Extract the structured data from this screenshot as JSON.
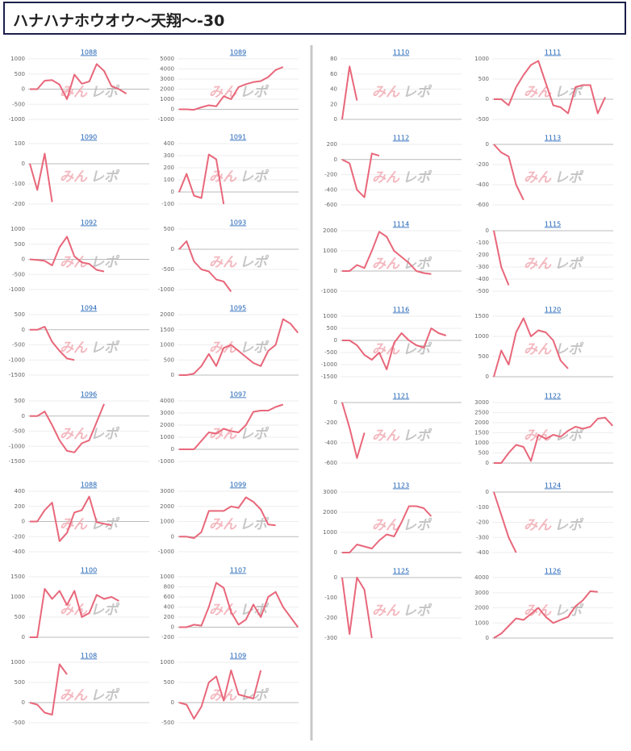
{
  "header": {
    "title": "ハナハナホウオウ～天翔～-30"
  },
  "watermark": [
    "みん",
    "レポ"
  ],
  "chart_data": [
    {
      "type": "line",
      "title": "1088",
      "color": "#e8677a",
      "ylim": [
        -1000,
        1000
      ],
      "yticks": [
        1000,
        500,
        0,
        -500,
        -1000
      ],
      "values": [
        0,
        0,
        280,
        300,
        150,
        -330,
        480,
        180,
        250,
        830,
        600,
        100,
        0,
        -150
      ]
    },
    {
      "type": "line",
      "title": "1089",
      "color": "#e8677a",
      "ylim": [
        -1000,
        5000
      ],
      "yticks": [
        5000,
        4000,
        3000,
        2000,
        1000,
        0,
        -1000
      ],
      "values": [
        0,
        0,
        -50,
        200,
        400,
        300,
        1300,
        1000,
        2200,
        2500,
        2700,
        2800,
        3200,
        3900,
        4200
      ]
    },
    {
      "type": "line",
      "title": "1090",
      "color": "#e8677a",
      "ylim": [
        -200,
        100
      ],
      "yticks": [
        100,
        0,
        -100,
        -200
      ],
      "values": [
        0,
        -130,
        50,
        -190
      ]
    },
    {
      "type": "line",
      "title": "1091",
      "color": "#e8677a",
      "ylim": [
        -100,
        400
      ],
      "yticks": [
        400,
        300,
        200,
        100,
        0,
        -100
      ],
      "values": [
        0,
        150,
        -30,
        -50,
        310,
        270,
        -100
      ]
    },
    {
      "type": "line",
      "title": "1092",
      "color": "#e8677a",
      "ylim": [
        -1000,
        1000
      ],
      "yticks": [
        1000,
        500,
        0,
        -500,
        -1000
      ],
      "values": [
        0,
        -20,
        -50,
        -200,
        400,
        750,
        100,
        -100,
        -150,
        -350,
        -400
      ]
    },
    {
      "type": "line",
      "title": "1093",
      "color": "#e8677a",
      "ylim": [
        -1000,
        500
      ],
      "yticks": [
        500,
        0,
        -500,
        -1000
      ],
      "values": [
        0,
        200,
        -300,
        -500,
        -550,
        -750,
        -800,
        -1050
      ]
    },
    {
      "type": "line",
      "title": "1094",
      "color": "#e8677a",
      "ylim": [
        -1500,
        500
      ],
      "yticks": [
        500,
        0,
        -500,
        -1000,
        -1500
      ],
      "values": [
        0,
        0,
        100,
        -400,
        -700,
        -950,
        -1000
      ]
    },
    {
      "type": "line",
      "title": "1095",
      "color": "#e8677a",
      "ylim": [
        0,
        2000
      ],
      "yticks": [
        2000,
        1500,
        1000,
        500,
        0
      ],
      "values": [
        0,
        0,
        50,
        300,
        700,
        300,
        900,
        1000,
        800,
        600,
        400,
        300,
        800,
        1000,
        1850,
        1700,
        1400
      ]
    },
    {
      "type": "line",
      "title": "1096",
      "color": "#e8677a",
      "ylim": [
        -1500,
        500
      ],
      "yticks": [
        500,
        0,
        -500,
        -1000,
        -1500
      ],
      "values": [
        0,
        0,
        150,
        -300,
        -800,
        -1150,
        -1200,
        -900,
        -800,
        -200,
        400
      ]
    },
    {
      "type": "line",
      "title": "1097",
      "color": "#e8677a",
      "ylim": [
        -1000,
        4000
      ],
      "yticks": [
        4000,
        3000,
        2000,
        1000,
        0,
        -1000
      ],
      "values": [
        0,
        0,
        0,
        700,
        1400,
        1300,
        1700,
        1500,
        1400,
        2000,
        3100,
        3200,
        3200,
        3500,
        3700
      ]
    },
    {
      "type": "line",
      "title": "1088",
      "color": "#e8677a",
      "ylim": [
        -400,
        400
      ],
      "yticks": [
        400,
        200,
        0,
        -200,
        -400
      ],
      "values": [
        0,
        0,
        150,
        250,
        -260,
        -150,
        120,
        150,
        330,
        -10,
        -30,
        -50
      ]
    },
    {
      "type": "line",
      "title": "1099",
      "color": "#e8677a",
      "ylim": [
        -1000,
        3000
      ],
      "yticks": [
        3000,
        2000,
        1000,
        0,
        -1000
      ],
      "values": [
        0,
        0,
        -100,
        300,
        1700,
        1700,
        1700,
        2000,
        1900,
        2600,
        2300,
        1800,
        800,
        750
      ]
    },
    {
      "type": "line",
      "title": "1100",
      "color": "#e8677a",
      "ylim": [
        0,
        1500
      ],
      "yticks": [
        1500,
        1000,
        500,
        0
      ],
      "values": [
        0,
        0,
        1200,
        950,
        1150,
        800,
        1150,
        500,
        600,
        1050,
        950,
        1000,
        900
      ]
    },
    {
      "type": "line",
      "title": "1107",
      "color": "#e8677a",
      "ylim": [
        -200,
        1000
      ],
      "yticks": [
        1000,
        800,
        600,
        400,
        200,
        0,
        -200
      ],
      "values": [
        0,
        0,
        50,
        30,
        400,
        880,
        780,
        300,
        50,
        150,
        450,
        200,
        600,
        700,
        400,
        200,
        0
      ]
    },
    {
      "type": "line",
      "title": "1108",
      "color": "#e8677a",
      "ylim": [
        -500,
        1000
      ],
      "yticks": [
        1000,
        500,
        0,
        -500
      ],
      "values": [
        0,
        -50,
        -250,
        -300,
        950,
        700
      ]
    },
    {
      "type": "line",
      "title": "1109",
      "color": "#e8677a",
      "ylim": [
        -500,
        1000
      ],
      "yticks": [
        1000,
        500,
        0,
        -500
      ],
      "values": [
        0,
        -50,
        -400,
        -100,
        500,
        650,
        50,
        800,
        200,
        150,
        100,
        800
      ]
    },
    {
      "type": "line",
      "title": "1110",
      "color": "#e8677a",
      "ylim": [
        0,
        80
      ],
      "yticks": [
        80,
        60,
        40,
        20,
        0
      ],
      "values": [
        0,
        70,
        25
      ]
    },
    {
      "type": "line",
      "title": "1111",
      "color": "#e8677a",
      "ylim": [
        -500,
        1000
      ],
      "yticks": [
        1000,
        500,
        0,
        -500
      ],
      "values": [
        0,
        0,
        -150,
        300,
        600,
        850,
        950,
        400,
        -150,
        -200,
        -350,
        300,
        350,
        350,
        -350,
        50
      ]
    },
    {
      "type": "line",
      "title": "1112",
      "color": "#e8677a",
      "ylim": [
        -600,
        200
      ],
      "yticks": [
        200,
        0,
        -200,
        -400,
        -600
      ],
      "values": [
        0,
        -50,
        -400,
        -500,
        80,
        50
      ]
    },
    {
      "type": "line",
      "title": "1113",
      "color": "#e8677a",
      "ylim": [
        -600,
        0
      ],
      "yticks": [
        0,
        -200,
        -400,
        -600
      ],
      "values": [
        0,
        -80,
        -120,
        -400,
        -550
      ]
    },
    {
      "type": "line",
      "title": "1114",
      "color": "#e8677a",
      "ylim": [
        -1000,
        2000
      ],
      "yticks": [
        2000,
        1000,
        0,
        -1000
      ],
      "values": [
        0,
        0,
        300,
        150,
        1000,
        1950,
        1700,
        1000,
        700,
        400,
        0,
        -100,
        -150
      ]
    },
    {
      "type": "line",
      "title": "1115",
      "color": "#e8677a",
      "ylim": [
        -500,
        0
      ],
      "yticks": [
        0,
        -100,
        -200,
        -300,
        -400,
        -500
      ],
      "values": [
        0,
        -300,
        -450
      ]
    },
    {
      "type": "line",
      "title": "1116",
      "color": "#e8677a",
      "ylim": [
        -1500,
        1000
      ],
      "yticks": [
        1000,
        500,
        0,
        -500,
        -1000,
        -1500
      ],
      "values": [
        0,
        0,
        -200,
        -600,
        -800,
        -500,
        -1200,
        -100,
        300,
        0,
        -200,
        -300,
        500,
        300,
        200
      ]
    },
    {
      "type": "line",
      "title": "1120",
      "color": "#e8677a",
      "ylim": [
        0,
        1500
      ],
      "yticks": [
        1500,
        1000,
        500,
        0
      ],
      "values": [
        0,
        650,
        300,
        1100,
        1450,
        1000,
        1150,
        1100,
        900,
        400,
        200
      ]
    },
    {
      "type": "line",
      "title": "1121",
      "color": "#e8677a",
      "ylim": [
        -600,
        0
      ],
      "yticks": [
        0,
        -200,
        -400,
        -600
      ],
      "values": [
        0,
        -250,
        -550,
        -300
      ]
    },
    {
      "type": "line",
      "title": "1122",
      "color": "#e8677a",
      "ylim": [
        0,
        3000
      ],
      "yticks": [
        3000,
        2500,
        2000,
        1500,
        1000,
        500,
        0
      ],
      "values": [
        0,
        0,
        500,
        900,
        800,
        100,
        1400,
        1200,
        1400,
        1300,
        1600,
        1800,
        1700,
        1800,
        2200,
        2250,
        1850
      ]
    },
    {
      "type": "line",
      "title": "1123",
      "color": "#e8677a",
      "ylim": [
        0,
        3000
      ],
      "yticks": [
        3000,
        2000,
        1000,
        0
      ],
      "values": [
        0,
        0,
        400,
        300,
        200,
        600,
        900,
        800,
        1500,
        2300,
        2300,
        2200,
        1800
      ]
    },
    {
      "type": "line",
      "title": "1124",
      "color": "#e8677a",
      "ylim": [
        -400,
        0
      ],
      "yticks": [
        0,
        -100,
        -200,
        -300,
        -400
      ],
      "values": [
        0,
        -150,
        -300,
        -400
      ]
    },
    {
      "type": "line",
      "title": "1125",
      "color": "#e8677a",
      "ylim": [
        -300,
        0
      ],
      "yticks": [
        0,
        -100,
        -200,
        -300
      ],
      "values": [
        0,
        -280,
        0,
        -60,
        -300
      ]
    },
    {
      "type": "line",
      "title": "1126",
      "color": "#e8677a",
      "ylim": [
        0,
        4000
      ],
      "yticks": [
        4000,
        3000,
        2000,
        1000,
        0
      ],
      "values": [
        0,
        300,
        800,
        1300,
        1200,
        1600,
        2000,
        1400,
        1000,
        1200,
        1400,
        2100,
        2500,
        3100,
        3050
      ]
    }
  ]
}
